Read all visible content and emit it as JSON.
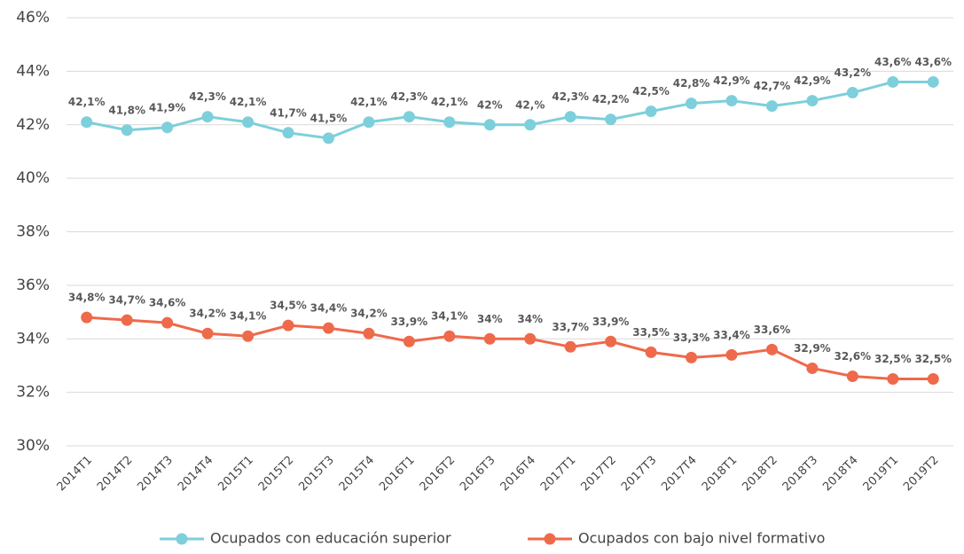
{
  "chart_data": {
    "type": "line",
    "categories": [
      "2014T1",
      "2014T2",
      "2014T3",
      "2014T4",
      "2015T1",
      "2015T2",
      "2015T3",
      "2015T4",
      "2016T1",
      "2016T2",
      "2016T3",
      "2016T4",
      "2017T1",
      "2017T2",
      "2017T3",
      "2017T4",
      "2018T1",
      "2018T2",
      "2018T3",
      "2018T4",
      "2019T1",
      "2019T2"
    ],
    "series": [
      {
        "name": "Ocupados con educación superior",
        "color": "#7dcfdb",
        "values": [
          42.1,
          41.8,
          41.9,
          42.3,
          42.1,
          41.7,
          41.5,
          42.1,
          42.3,
          42.1,
          42,
          42,
          42.3,
          42.2,
          42.5,
          42.8,
          42.9,
          42.7,
          42.9,
          43.2,
          43.6,
          43.6
        ],
        "value_labels": [
          "42,1%",
          "41,8%",
          "41,9%",
          "42,3%",
          "42,1%",
          "41,7%",
          "41,5%",
          "42,1%",
          "42,3%",
          "42,1%",
          "42%",
          "42,%",
          "42,3%",
          "42,2%",
          "42,5%",
          "42,8%",
          "42,9%",
          "42,7%",
          "42,9%",
          "43,2%",
          "43,6%",
          "43,6%"
        ]
      },
      {
        "name": "Ocupados con bajo nivel formativo",
        "color": "#ee6a4b",
        "values": [
          34.8,
          34.7,
          34.6,
          34.2,
          34.1,
          34.5,
          34.4,
          34.2,
          33.9,
          34.1,
          34,
          34,
          33.7,
          33.9,
          33.5,
          33.3,
          33.4,
          33.6,
          32.9,
          32.6,
          32.5,
          32.5
        ],
        "value_labels": [
          "34,8%",
          "34,7%",
          "34,6%",
          "34,2%",
          "34,1%",
          "34,5%",
          "34,4%",
          "34,2%",
          "33,9%",
          "34,1%",
          "34%",
          "34%",
          "33,7%",
          "33,9%",
          "33,5%",
          "33,3%",
          "33,4%",
          "33,6%",
          "32,9%",
          "32,6%",
          "32,5%",
          "32,5%"
        ]
      }
    ],
    "ylim": [
      30,
      46
    ],
    "yticks": [
      {
        "value": 30,
        "label": "30%"
      },
      {
        "value": 32,
        "label": "32%"
      },
      {
        "value": 34,
        "label": "34%"
      },
      {
        "value": 36,
        "label": "36%"
      },
      {
        "value": 38,
        "label": "38%"
      },
      {
        "value": 40,
        "label": "40%"
      },
      {
        "value": 42,
        "label": "42%"
      },
      {
        "value": 44,
        "label": "44%"
      },
      {
        "value": 46,
        "label": "46%"
      }
    ],
    "grid": true,
    "legend": "bottom"
  }
}
